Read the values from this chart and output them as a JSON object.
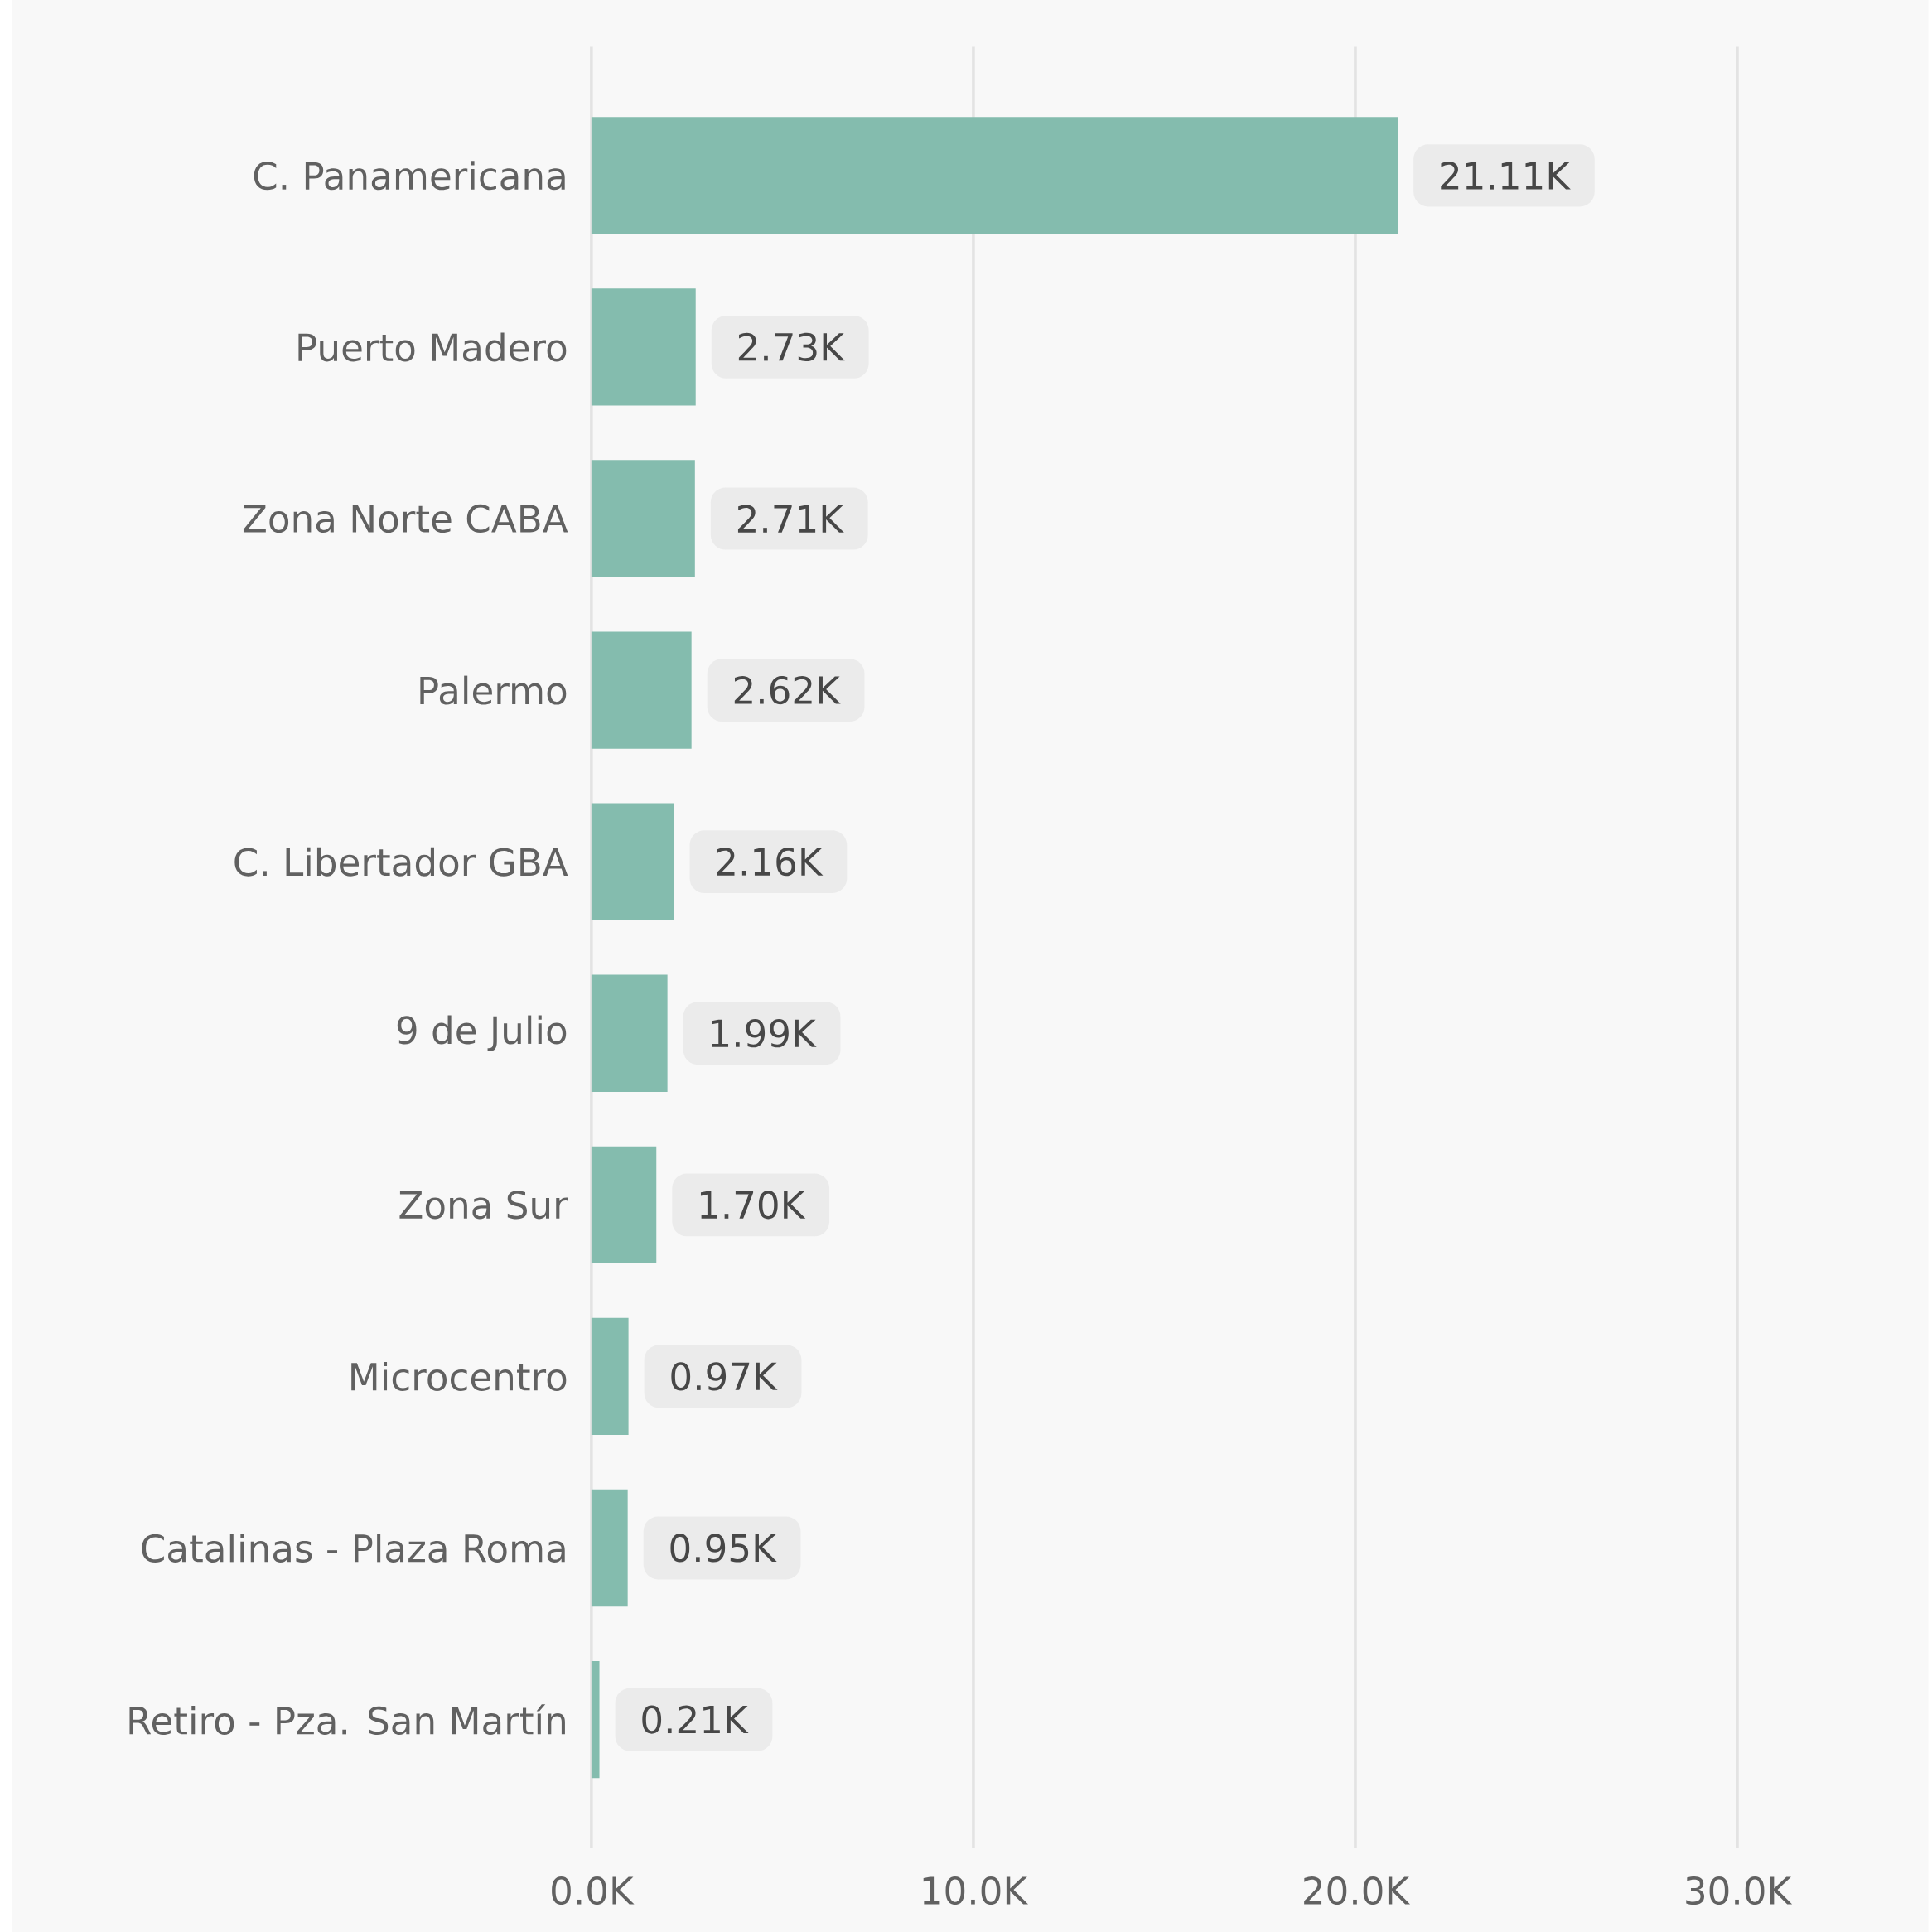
{
  "chart_data": {
    "type": "bar",
    "orientation": "horizontal",
    "categories": [
      "C. Panamericana",
      "Puerto Madero",
      "Zona Norte CABA",
      "Palermo",
      "C. Libertador GBA",
      "9 de Julio",
      "Zona Sur",
      "Microcentro",
      "Catalinas - Plaza Roma",
      "Retiro - Pza. San Martín"
    ],
    "values": [
      21.11,
      2.73,
      2.71,
      2.62,
      2.16,
      1.99,
      1.7,
      0.97,
      0.95,
      0.21
    ],
    "value_labels": [
      "21.11K",
      "2.73K",
      "2.71K",
      "2.62K",
      "2.16K",
      "1.99K",
      "1.70K",
      "0.97K",
      "0.95K",
      "0.21K"
    ],
    "color": "#84bcae",
    "xlim": [
      0,
      35
    ],
    "xticks": [
      {
        "value": 0,
        "label": "0.0K"
      },
      {
        "value": 10,
        "label": "10.0K"
      },
      {
        "value": 20,
        "label": "20.0K"
      },
      {
        "value": 30,
        "label": "30.0K"
      }
    ],
    "grid": "x"
  }
}
